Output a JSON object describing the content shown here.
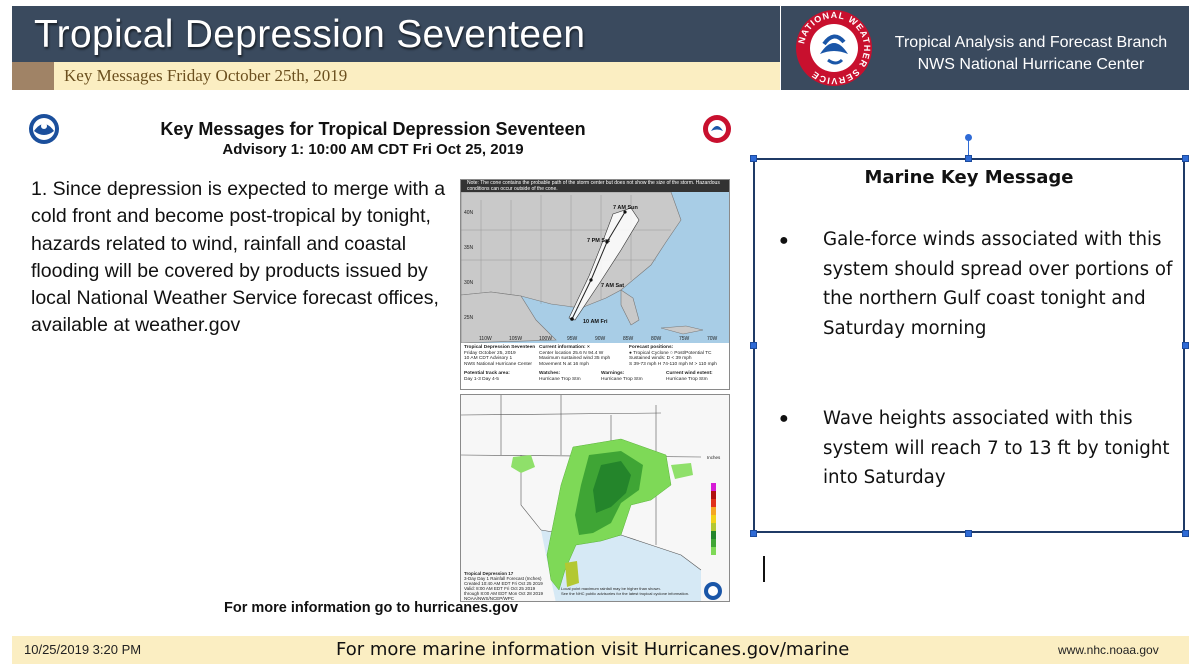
{
  "header": {
    "title": "Tropical Depression Seventeen",
    "subtitle": "Key Messages Friday October 25th, 2019",
    "branch_line1": "Tropical Analysis and Forecast Branch",
    "branch_line2": "NWS National Hurricane Center",
    "logo_ring_text": "NATIONAL WEATHER SERVICE",
    "colors": {
      "bar": "#3a4a5e",
      "subbar": "#fbeec2",
      "tan": "#a08366"
    }
  },
  "key_message_graphic": {
    "title": "Key Messages for Tropical Depression Seventeen",
    "advisory": "Advisory 1:  10:00 AM CDT Fri Oct 25, 2019",
    "body": "1. Since depression is expected to merge with a cold front and become post-tropical by tonight, hazards related to wind, rainfall and coastal flooding will be covered by products issued by local National Weather Service forecast offices, available at weather.gov",
    "footer": "For more information go to hurricanes.gov",
    "track_map": {
      "note": "Note: The cone contains the probable path of the storm center but does not show the size of the storm. Hazardous conditions can occur outside of the cone.",
      "points": [
        "7 AM Sun",
        "7 PM Sat",
        "7 AM Sat",
        "10 AM Fri"
      ],
      "lat_labels": [
        "40N",
        "35N",
        "30N",
        "25N"
      ],
      "lon_labels": [
        "110W",
        "105W",
        "100W",
        "95W",
        "90W",
        "85W",
        "80W",
        "75W",
        "70W"
      ],
      "info_left": [
        "Tropical Depression Seventeen",
        "Friday October 25, 2019",
        "10 AM CDT Advisory 1",
        "NWS National Hurricane Center"
      ],
      "current_info_title": "Current information: ×",
      "current_info": [
        "Center location 25.6 N 94.4 W",
        "Maximum sustained wind 35 mph",
        "Movement N at 16 mph"
      ],
      "forecast_title": "Forecast positions:",
      "forecast_items": [
        "● Tropical Cyclone  ○ Post/Potential TC",
        "Sustained winds:        D < 39 mph",
        "S 39-73 mph  H 74-110 mph  M > 110 mph"
      ],
      "track_area": "Potential track area:",
      "track_days": "Day 1-3     Day 4-5",
      "watches": "Watches:",
      "watch_items": "Hurricane   Trop Stm",
      "warnings": "Warnings:",
      "warning_items": "Hurricane   Trop Stm",
      "wind_extent": "Current wind extent:",
      "wind_items": "Hurricane   Trop Stm"
    },
    "rain_map": {
      "legend_title": "Inches",
      "legend_values": [
        "20",
        "15",
        "10",
        "7",
        "5",
        "4",
        "3",
        "2",
        "1.5",
        "1",
        "0.5"
      ],
      "caption": [
        "Tropical Depression 17",
        "3-Day Day 1 Rainfall Forecast (Inches)",
        "Created 10:40 AM EDT Fri Oct 25 2019",
        "Valid: 8:00 AM EDT Fri Oct 25 2019",
        "through 8:00 AM EDT Mon Oct 28 2019",
        "NOAA/NWS/NCEP/WPC"
      ],
      "bottom_note": [
        "Local point maximum rainfall may be higher than shown.",
        "See the NHC public advisories for the latest tropical cyclone information."
      ]
    }
  },
  "marine": {
    "heading": "Marine Key Message",
    "bullet_glyph": "●",
    "bullets": [
      "Gale-force winds associated with this system should spread over portions of the northern Gulf coast tonight and Saturday morning",
      "Wave heights associated with this system will reach 7 to 13 ft by tonight into Saturday"
    ]
  },
  "footer": {
    "datetime": "10/25/2019 3:20 PM",
    "center": "For more marine information visit Hurricanes.gov/marine",
    "url": "www.nhc.noaa.gov"
  }
}
